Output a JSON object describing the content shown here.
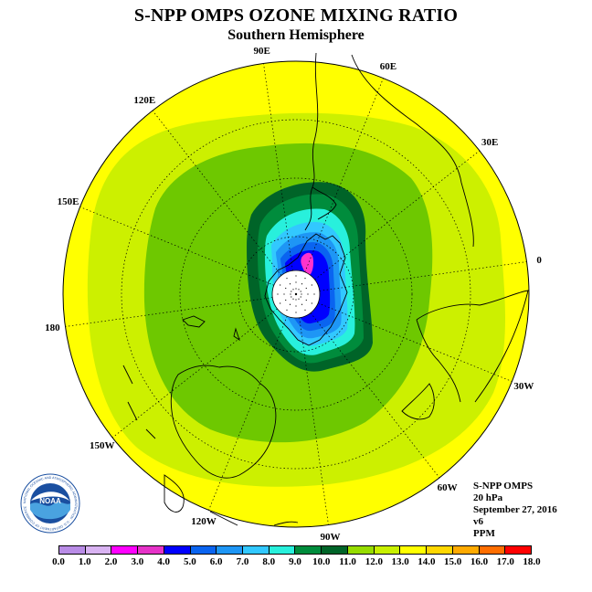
{
  "title": "S-NPP OMPS OZONE MIXING RATIO",
  "subtitle": "Southern Hemisphere",
  "longitude_labels": [
    {
      "text": "90W",
      "lon": -90
    },
    {
      "text": "60W",
      "lon": -60
    },
    {
      "text": "30W",
      "lon": -30
    },
    {
      "text": "0",
      "lon": 0
    },
    {
      "text": "30E",
      "lon": 30
    },
    {
      "text": "60E",
      "lon": 60
    },
    {
      "text": "90E",
      "lon": 90
    },
    {
      "text": "120E",
      "lon": 120
    },
    {
      "text": "150E",
      "lon": 150
    },
    {
      "text": "180",
      "lon": 180
    },
    {
      "text": "150W",
      "lon": -150
    },
    {
      "text": "120W",
      "lon": -120
    }
  ],
  "info": {
    "instrument": "S-NPP OMPS",
    "level": "20 hPa",
    "date": "September 27, 2016",
    "version": "v6",
    "units": "PPM"
  },
  "colorbar": {
    "ticks": [
      "0.0",
      "1.0",
      "2.0",
      "3.0",
      "4.0",
      "5.0",
      "6.0",
      "7.0",
      "8.0",
      "9.0",
      "10.0",
      "11.0",
      "12.0",
      "13.0",
      "14.0",
      "15.0",
      "16.0",
      "17.0",
      "18.0"
    ],
    "colors": [
      "#b98ce6",
      "#d9b3f2",
      "#ff00ff",
      "#e633c8",
      "#0000ff",
      "#0a64f0",
      "#1e96f5",
      "#32c8ff",
      "#28f0dc",
      "#008c3c",
      "#006428",
      "#96dc00",
      "#c8f000",
      "#ffff00",
      "#ffd700",
      "#ffaa00",
      "#ff6e00",
      "#ff0000",
      "#8b5a3c"
    ]
  },
  "map_colors": {
    "outer": "#ffff00",
    "ring_11_12": "#ccf000",
    "ring_10_11": "#96dc00",
    "ring_9_10": "#6ec800",
    "dark_green": "#006428",
    "mid_green": "#008c3c",
    "cyan": "#28f0dc",
    "light_blue": "#32c8ff",
    "blue2": "#1e96f5",
    "blue3": "#0a64f0",
    "blue4": "#0000ff",
    "magenta": "#ff33cc"
  },
  "logo": {
    "text": "NOAA",
    "ring_text": "NATIONAL OCEANIC AND ATMOSPHERIC ADMINISTRATION · U.S. DEPARTMENT OF COMMERCE"
  }
}
